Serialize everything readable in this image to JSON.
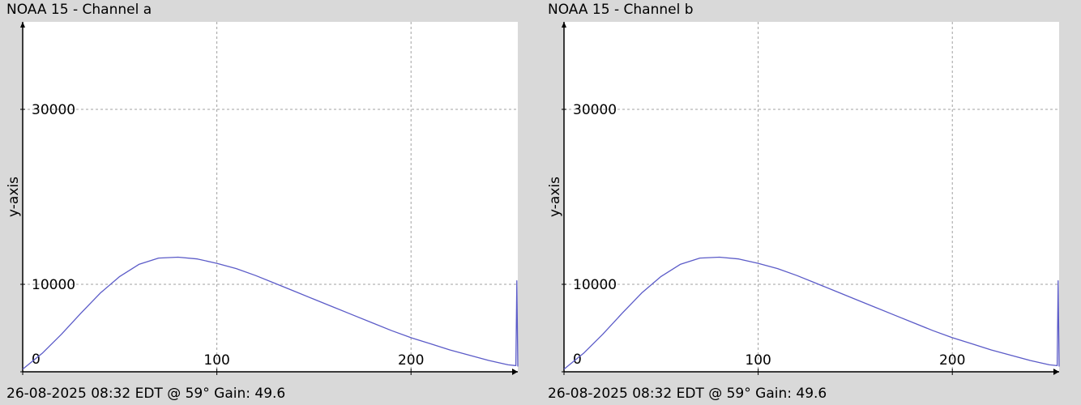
{
  "colors": {
    "background": "#d9d9d9",
    "plot_background": "#ffffff",
    "series": "#5b5bc8",
    "grid": "#a0a0a0",
    "axis": "#000000"
  },
  "chart_data": [
    {
      "type": "line",
      "title": "NOAA 15 - Channel a",
      "caption": "26-08-2025 08:32 EDT @ 59° Gain: 49.6",
      "xlabel": "",
      "ylabel": "y-axis",
      "xlim": [
        0,
        255
      ],
      "ylim": [
        0,
        40000
      ],
      "x_ticks": [
        0,
        100,
        200
      ],
      "y_ticks": [
        0,
        10000,
        30000
      ],
      "grid": true,
      "series": [
        {
          "x": [
            0,
            10,
            20,
            30,
            40,
            50,
            60,
            70,
            80,
            90,
            100,
            110,
            120,
            130,
            140,
            150,
            160,
            170,
            180,
            190,
            200,
            210,
            220,
            230,
            240,
            250,
            254,
            254.5,
            255
          ],
          "y": [
            300,
            2100,
            4300,
            6700,
            9000,
            10900,
            12300,
            13000,
            13100,
            12900,
            12400,
            11800,
            11000,
            10100,
            9200,
            8300,
            7400,
            6500,
            5600,
            4700,
            3900,
            3200,
            2500,
            1900,
            1300,
            800,
            700,
            10400,
            600
          ]
        }
      ]
    },
    {
      "type": "line",
      "title": "NOAA 15 - Channel b",
      "caption": "26-08-2025 08:32 EDT @ 59° Gain: 49.6",
      "xlabel": "",
      "ylabel": "y-axis",
      "xlim": [
        0,
        255
      ],
      "ylim": [
        0,
        40000
      ],
      "x_ticks": [
        0,
        100,
        200
      ],
      "y_ticks": [
        0,
        10000,
        30000
      ],
      "grid": true,
      "series": [
        {
          "x": [
            0,
            10,
            20,
            30,
            40,
            50,
            60,
            70,
            80,
            90,
            100,
            110,
            120,
            130,
            140,
            150,
            160,
            170,
            180,
            190,
            200,
            210,
            220,
            230,
            240,
            250,
            254,
            254.5,
            255
          ],
          "y": [
            300,
            2100,
            4300,
            6700,
            9000,
            10900,
            12300,
            13000,
            13100,
            12900,
            12400,
            11800,
            11000,
            10100,
            9200,
            8300,
            7400,
            6500,
            5600,
            4700,
            3900,
            3200,
            2500,
            1900,
            1300,
            800,
            700,
            10400,
            600
          ]
        }
      ]
    }
  ]
}
